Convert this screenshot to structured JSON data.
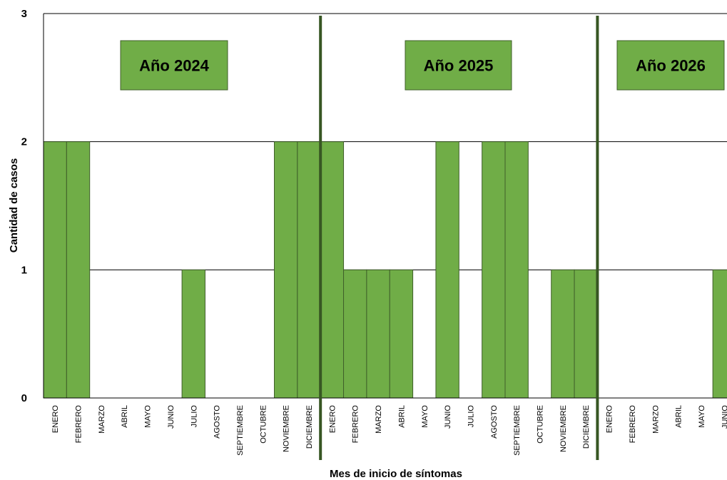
{
  "chart_data": {
    "type": "bar",
    "title": "",
    "xlabel": "Mes de inicio de síntomas",
    "ylabel": "Cantidad de casos",
    "ylim": [
      0,
      3
    ],
    "yticks": [
      "0",
      "1",
      "2",
      "3"
    ],
    "grid": true,
    "colors": {
      "bar": "#70ad47",
      "bar_edge": "#3f5f2a",
      "separator": "#375623",
      "label_box": "#70ad47"
    },
    "categories": [
      "ENERO",
      "FEBRERO",
      "MARZO",
      "ABRIL",
      "MAYO",
      "JUNIO",
      "JULIO",
      "AGOSTO",
      "SEPTIEMBRE",
      "OCTUBRE",
      "NOVIEMBRE",
      "DICIEMBRE",
      "ENERO",
      "FEBRERO",
      "MARZO",
      "ABRIL",
      "MAYO",
      "JUNIO",
      "JULIO",
      "AGOSTO",
      "SEPTIEMBRE",
      "OCTUBRE",
      "NOVIEMBRE",
      "DICIEMBRE",
      "ENERO",
      "FEBRERO",
      "MARZO",
      "ABRIL",
      "MAYO",
      "JUNIO"
    ],
    "values": [
      2,
      2,
      0,
      0,
      0,
      0,
      1,
      0,
      0,
      0,
      2,
      2,
      2,
      1,
      1,
      1,
      0,
      2,
      0,
      2,
      2,
      0,
      1,
      1,
      0,
      0,
      0,
      0,
      0,
      1
    ],
    "year_labels": [
      "Año 2024",
      "Año 2025",
      "Año 2026"
    ]
  }
}
